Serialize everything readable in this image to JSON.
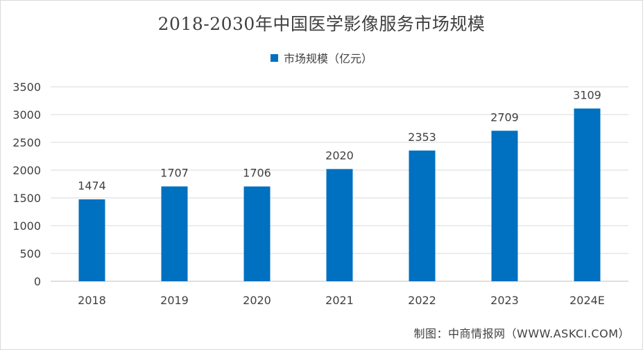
{
  "chart_data": {
    "type": "bar",
    "title": "2018-2030年中国医学影像服务市场规模",
    "categories": [
      "2018",
      "2019",
      "2020",
      "2021",
      "2022",
      "2023",
      "2024E"
    ],
    "series": [
      {
        "name": "市场规模（亿元）",
        "values": [
          1474,
          1707,
          1706,
          2020,
          2353,
          2709,
          3109
        ]
      }
    ],
    "ylim": [
      0,
      3500
    ],
    "yticks": [
      0,
      500,
      1000,
      1500,
      2000,
      2500,
      3000,
      3500
    ],
    "grid": true,
    "legend": "top-center",
    "data_labels": true
  },
  "colors": {
    "bar": "#0070c0",
    "grid": "#d9d9d9",
    "axis": "#bfbfbf",
    "text": "#404040"
  },
  "source": "制图：中商情报网（WWW.ASKCI.COM）"
}
